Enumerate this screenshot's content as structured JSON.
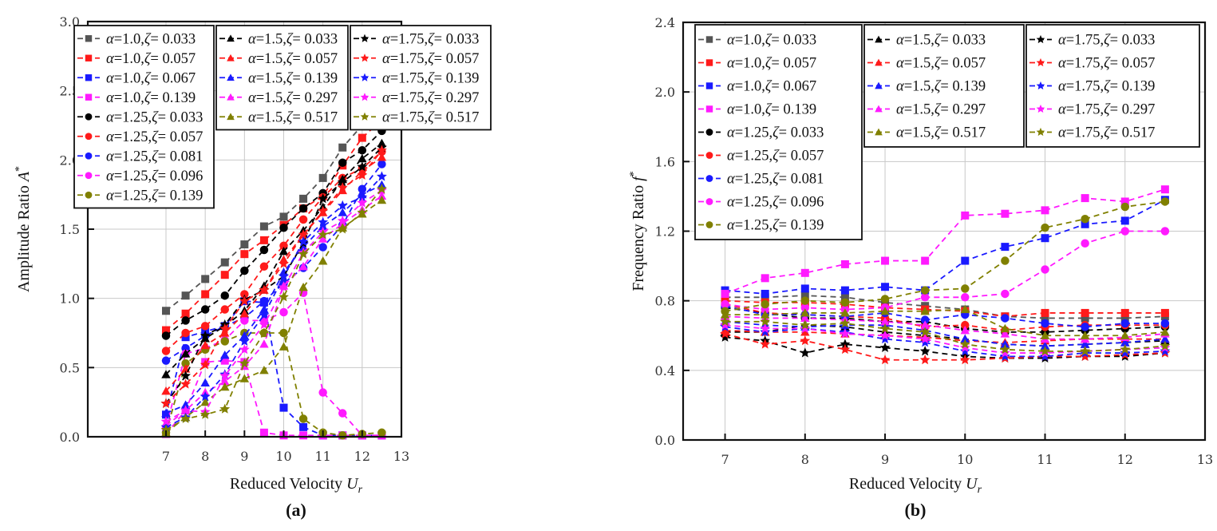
{
  "chart_data": [
    {
      "id": "a",
      "type": "line",
      "panel_label": "(a)",
      "xlabel": "Reduced Velocity U_r",
      "xlabel_main": "Reduced Velocity ",
      "xlabel_var": "U",
      "xlabel_sub": "r",
      "ylabel": "Amplitude Ratio A*",
      "ylabel_main": "Amplitude Ratio ",
      "ylabel_var": "A",
      "ylabel_sup": "*",
      "xlim": [
        6,
        13
      ],
      "ylim": [
        0,
        3.0
      ],
      "xticks": [
        "7",
        "8",
        "9",
        "10",
        "11",
        "12",
        "13"
      ],
      "xtick_values": [
        7,
        8,
        9,
        10,
        11,
        12,
        13
      ],
      "yticks": [
        "0.0",
        "0.5",
        "1.0",
        "1.5",
        "2.0",
        "2.5",
        "3.0"
      ],
      "ytick_values": [
        0,
        0.5,
        1.0,
        1.5,
        2.0,
        2.5,
        3.0
      ],
      "grid": true,
      "legend_placement": "top-left",
      "x": [
        7,
        7.5,
        8,
        8.5,
        9,
        9.5,
        10,
        10.5,
        11,
        11.5,
        12,
        12.5
      ],
      "series": [
        {
          "name": "α=1.0,ζ= 0.033",
          "alpha": "1.0",
          "zeta": "0.033",
          "marker": "square",
          "color": "#555555",
          "values": [
            0.91,
            1.02,
            1.14,
            1.26,
            1.39,
            1.52,
            1.59,
            1.72,
            1.87,
            2.09,
            2.25,
            2.41
          ]
        },
        {
          "name": "α=1.0,ζ= 0.057",
          "alpha": "1.0",
          "zeta": "0.057",
          "marker": "square",
          "color": "#ff1a1a",
          "values": [
            0.77,
            0.89,
            1.03,
            1.17,
            1.32,
            1.42,
            1.53,
            1.65,
            1.74,
            1.96,
            2.16,
            2.29
          ]
        },
        {
          "name": "α=1.0,ζ= 0.067",
          "alpha": "1.0",
          "zeta": "0.067",
          "marker": "square",
          "color": "#1a1aff",
          "values": [
            0.16,
            0.72,
            0.76,
            0.8,
            0.98,
            0.97,
            0.21,
            0.07,
            0.01,
            0.01,
            0.01,
            0.01
          ]
        },
        {
          "name": "α=1.0,ζ= 0.139",
          "alpha": "1.0",
          "zeta": "0.139",
          "marker": "square",
          "color": "#ff1aff",
          "values": [
            0.02,
            0.19,
            0.54,
            0.55,
            0.54,
            0.03,
            0.01,
            0.01,
            0.01,
            0.01,
            0.01,
            0.01
          ]
        },
        {
          "name": "α=1.25,ζ= 0.033",
          "alpha": "1.25",
          "zeta": "0.033",
          "marker": "circle",
          "color": "#000000",
          "values": [
            0.73,
            0.84,
            0.92,
            1.02,
            1.2,
            1.35,
            1.51,
            1.65,
            1.76,
            1.98,
            2.07,
            2.21
          ]
        },
        {
          "name": "α=1.25,ζ= 0.057",
          "alpha": "1.25",
          "zeta": "0.057",
          "marker": "circle",
          "color": "#ff1a1a",
          "values": [
            0.62,
            0.75,
            0.8,
            0.92,
            1.03,
            1.23,
            1.38,
            1.57,
            1.73,
            1.87,
            1.94,
            2.06
          ]
        },
        {
          "name": "α=1.25,ζ= 0.081",
          "alpha": "1.25",
          "zeta": "0.081",
          "marker": "circle",
          "color": "#1a1aff",
          "values": [
            0.55,
            0.64,
            0.73,
            0.8,
            0.86,
            0.98,
            1.11,
            1.22,
            1.37,
            1.53,
            1.79,
            1.97
          ]
        },
        {
          "name": "α=1.25,ζ= 0.096",
          "alpha": "1.25",
          "zeta": "0.096",
          "marker": "circle",
          "color": "#ff1aff",
          "values": [
            0.07,
            0.6,
            0.64,
            0.7,
            0.84,
            0.84,
            0.9,
            1.04,
            0.32,
            0.17,
            0.01,
            0.01
          ]
        },
        {
          "name": "α=1.25,ζ= 0.139",
          "alpha": "1.25",
          "zeta": "0.139",
          "marker": "circle",
          "color": "#808000",
          "values": [
            0.03,
            0.53,
            0.63,
            0.69,
            0.75,
            0.75,
            0.75,
            0.13,
            0.03,
            0.01,
            0.02,
            0.03
          ]
        },
        {
          "name": "α=1.5,ζ= 0.033",
          "alpha": "1.5",
          "zeta": "0.033",
          "marker": "triangle",
          "color": "#000000",
          "values": [
            0.45,
            0.6,
            0.71,
            0.8,
            0.91,
            1.09,
            1.34,
            1.49,
            1.66,
            1.86,
            2.01,
            2.12
          ]
        },
        {
          "name": "α=1.5,ζ= 0.057",
          "alpha": "1.5",
          "zeta": "0.057",
          "marker": "triangle",
          "color": "#ff1a1a",
          "values": [
            0.33,
            0.49,
            0.66,
            0.75,
            0.89,
            1.06,
            1.28,
            1.46,
            1.62,
            1.78,
            1.92,
            2.02
          ]
        },
        {
          "name": "α=1.5,ζ= 0.139",
          "alpha": "1.5",
          "zeta": "0.139",
          "marker": "triangle",
          "color": "#1a1aff",
          "values": [
            0.17,
            0.23,
            0.39,
            0.59,
            0.73,
            0.92,
            1.19,
            1.37,
            1.52,
            1.62,
            1.75,
            1.82
          ]
        },
        {
          "name": "α=1.5,ζ= 0.297",
          "alpha": "1.5",
          "zeta": "0.297",
          "marker": "triangle",
          "color": "#ff1aff",
          "values": [
            0.08,
            0.19,
            0.32,
            0.4,
            0.51,
            0.67,
            1.09,
            1.23,
            1.43,
            1.54,
            1.64,
            1.74
          ]
        },
        {
          "name": "α=1.5,ζ= 0.517",
          "alpha": "1.5",
          "zeta": "0.517",
          "marker": "triangle",
          "color": "#808000",
          "values": [
            0.03,
            0.14,
            0.25,
            0.36,
            0.42,
            0.48,
            0.65,
            1.08,
            1.27,
            1.51,
            1.61,
            1.71
          ]
        },
        {
          "name": "α=1.75,ζ= 0.033",
          "alpha": "1.75",
          "zeta": "0.033",
          "marker": "star",
          "color": "#000000",
          "values": [
            0.24,
            0.44,
            0.73,
            0.81,
            0.99,
            1.06,
            1.16,
            1.4,
            1.72,
            1.84,
            1.95,
            2.09
          ]
        },
        {
          "name": "α=1.75,ζ= 0.057",
          "alpha": "1.75",
          "zeta": "0.057",
          "marker": "star",
          "color": "#ff1a1a",
          "values": [
            0.24,
            0.38,
            0.52,
            0.78,
            0.98,
            1.06,
            1.25,
            1.46,
            1.63,
            1.8,
            1.89,
            2.07
          ]
        },
        {
          "name": "α=1.75,ζ= 0.139",
          "alpha": "1.75",
          "zeta": "0.139",
          "marker": "star",
          "color": "#1a1aff",
          "values": [
            0.07,
            0.14,
            0.29,
            0.45,
            0.69,
            0.88,
            1.16,
            1.41,
            1.55,
            1.67,
            1.73,
            1.88
          ]
        },
        {
          "name": "α=1.75,ζ= 0.297",
          "alpha": "1.75",
          "zeta": "0.297",
          "marker": "star",
          "color": "#ff1aff",
          "values": [
            0.11,
            0.19,
            0.18,
            0.44,
            0.63,
            0.81,
            1.08,
            1.33,
            1.48,
            1.56,
            1.69,
            1.78
          ]
        },
        {
          "name": "α=1.75,ζ= 0.517",
          "alpha": "1.75",
          "zeta": "0.517",
          "marker": "star",
          "color": "#808000",
          "values": [
            0.05,
            0.13,
            0.16,
            0.2,
            0.53,
            0.75,
            1.01,
            1.32,
            1.46,
            1.5,
            1.62,
            1.79
          ]
        }
      ]
    },
    {
      "id": "b",
      "type": "line",
      "panel_label": "(b)",
      "xlabel": "Reduced Velocity U_r",
      "xlabel_main": "Reduced Velocity ",
      "xlabel_var": "U",
      "xlabel_sub": "r",
      "ylabel": "Frequency Ratio f*",
      "ylabel_main": "Frequency Ratio ",
      "ylabel_var": "f",
      "ylabel_sup": "*",
      "xlim": [
        6,
        13
      ],
      "ylim": [
        0,
        2.4
      ],
      "xticks": [
        "7",
        "8",
        "9",
        "10",
        "11",
        "12",
        "13"
      ],
      "xtick_values": [
        7,
        8,
        9,
        10,
        11,
        12,
        13
      ],
      "yticks": [
        "0.0",
        "0.4",
        "0.8",
        "1.2",
        "1.6",
        "2.0",
        "2.4"
      ],
      "ytick_values": [
        0,
        0.4,
        0.8,
        1.2,
        1.6,
        2.0,
        2.4
      ],
      "grid": true,
      "legend_placement": "top-left",
      "x": [
        7,
        7.5,
        8,
        8.5,
        9,
        9.5,
        10,
        10.5,
        11,
        11.5,
        12,
        12.5
      ],
      "series": [
        {
          "name": "α=1.0,ζ= 0.033",
          "alpha": "1.0",
          "zeta": "0.033",
          "marker": "square",
          "color": "#555555",
          "values": [
            0.82,
            0.82,
            0.83,
            0.82,
            0.79,
            0.77,
            0.75,
            0.71,
            0.7,
            0.7,
            0.7,
            0.71
          ]
        },
        {
          "name": "α=1.0,ζ= 0.057",
          "alpha": "1.0",
          "zeta": "0.057",
          "marker": "square",
          "color": "#ff1a1a",
          "values": [
            0.8,
            0.79,
            0.79,
            0.78,
            0.76,
            0.75,
            0.74,
            0.71,
            0.73,
            0.73,
            0.73,
            0.73
          ]
        },
        {
          "name": "α=1.0,ζ= 0.067",
          "alpha": "1.0",
          "zeta": "0.067",
          "marker": "square",
          "color": "#1a1aff",
          "values": [
            0.86,
            0.84,
            0.87,
            0.86,
            0.88,
            0.86,
            1.03,
            1.11,
            1.16,
            1.24,
            1.26,
            1.38
          ]
        },
        {
          "name": "α=1.0,ζ= 0.139",
          "alpha": "1.0",
          "zeta": "0.139",
          "marker": "square",
          "color": "#ff1aff",
          "values": [
            0.84,
            0.93,
            0.96,
            1.01,
            1.03,
            1.03,
            1.29,
            1.3,
            1.32,
            1.39,
            1.37,
            1.44
          ]
        },
        {
          "name": "α=1.25,ζ= 0.033",
          "alpha": "1.25",
          "zeta": "0.033",
          "marker": "circle",
          "color": "#000000",
          "values": [
            0.76,
            0.73,
            0.7,
            0.7,
            0.68,
            0.68,
            0.64,
            0.62,
            0.62,
            0.63,
            0.64,
            0.65
          ]
        },
        {
          "name": "α=1.25,ζ= 0.057",
          "alpha": "1.25",
          "zeta": "0.057",
          "marker": "circle",
          "color": "#ff1a1a",
          "values": [
            0.78,
            0.73,
            0.72,
            0.71,
            0.7,
            0.65,
            0.66,
            0.63,
            0.65,
            0.66,
            0.66,
            0.66
          ]
        },
        {
          "name": "α=1.25,ζ= 0.081",
          "alpha": "1.25",
          "zeta": "0.081",
          "marker": "circle",
          "color": "#1a1aff",
          "values": [
            0.77,
            0.72,
            0.72,
            0.71,
            0.73,
            0.69,
            0.72,
            0.7,
            0.67,
            0.65,
            0.67,
            0.67
          ]
        },
        {
          "name": "α=1.25,ζ= 0.096",
          "alpha": "1.25",
          "zeta": "0.096",
          "marker": "circle",
          "color": "#ff1aff",
          "values": [
            0.78,
            0.75,
            0.76,
            0.75,
            0.76,
            0.82,
            0.82,
            0.84,
            0.98,
            1.13,
            1.2,
            1.2
          ]
        },
        {
          "name": "α=1.25,ζ= 0.139",
          "alpha": "1.25",
          "zeta": "0.139",
          "marker": "circle",
          "color": "#808000",
          "values": [
            0.74,
            0.78,
            0.8,
            0.79,
            0.81,
            0.86,
            0.87,
            1.03,
            1.22,
            1.27,
            1.34,
            1.37
          ]
        },
        {
          "name": "α=1.5,ζ= 0.033",
          "alpha": "1.5",
          "zeta": "0.033",
          "marker": "triangle",
          "color": "#000000",
          "values": [
            0.62,
            0.62,
            0.66,
            0.65,
            0.62,
            0.6,
            0.58,
            0.55,
            0.54,
            0.55,
            0.56,
            0.57
          ]
        },
        {
          "name": "α=1.5,ζ= 0.057",
          "alpha": "1.5",
          "zeta": "0.057",
          "marker": "triangle",
          "color": "#ff1a1a",
          "values": [
            0.63,
            0.62,
            0.62,
            0.61,
            0.6,
            0.59,
            0.57,
            0.56,
            0.57,
            0.58,
            0.58,
            0.58
          ]
        },
        {
          "name": "α=1.5,ζ= 0.139",
          "alpha": "1.5",
          "zeta": "0.139",
          "marker": "triangle",
          "color": "#1a1aff",
          "values": [
            0.68,
            0.66,
            0.65,
            0.66,
            0.66,
            0.63,
            0.58,
            0.55,
            0.54,
            0.55,
            0.56,
            0.58
          ]
        },
        {
          "name": "α=1.5,ζ= 0.297",
          "alpha": "1.5",
          "zeta": "0.297",
          "marker": "triangle",
          "color": "#ff1aff",
          "values": [
            0.71,
            0.7,
            0.7,
            0.69,
            0.68,
            0.66,
            0.63,
            0.61,
            0.58,
            0.58,
            0.59,
            0.61
          ]
        },
        {
          "name": "α=1.5,ζ= 0.517",
          "alpha": "1.5",
          "zeta": "0.517",
          "marker": "triangle",
          "color": "#808000",
          "values": [
            0.72,
            0.72,
            0.73,
            0.73,
            0.74,
            0.74,
            0.75,
            0.64,
            0.6,
            0.6,
            0.6,
            0.62
          ]
        },
        {
          "name": "α=1.75,ζ= 0.033",
          "alpha": "1.75",
          "zeta": "0.033",
          "marker": "star",
          "color": "#000000",
          "values": [
            0.59,
            0.57,
            0.5,
            0.55,
            0.53,
            0.51,
            0.48,
            0.47,
            0.47,
            0.48,
            0.48,
            0.5
          ]
        },
        {
          "name": "α=1.75,ζ= 0.057",
          "alpha": "1.75",
          "zeta": "0.057",
          "marker": "star",
          "color": "#ff1a1a",
          "values": [
            0.61,
            0.55,
            0.57,
            0.52,
            0.46,
            0.46,
            0.46,
            0.47,
            0.48,
            0.48,
            0.49,
            0.5
          ]
        },
        {
          "name": "α=1.75,ζ= 0.139",
          "alpha": "1.75",
          "zeta": "0.139",
          "marker": "star",
          "color": "#1a1aff",
          "values": [
            0.65,
            0.62,
            0.64,
            0.62,
            0.58,
            0.56,
            0.51,
            0.48,
            0.48,
            0.5,
            0.5,
            0.51
          ]
        },
        {
          "name": "α=1.75,ζ= 0.297",
          "alpha": "1.75",
          "zeta": "0.297",
          "marker": "star",
          "color": "#ff1aff",
          "values": [
            0.66,
            0.64,
            0.64,
            0.61,
            0.6,
            0.58,
            0.53,
            0.5,
            0.5,
            0.51,
            0.52,
            0.53
          ]
        },
        {
          "name": "α=1.75,ζ= 0.517",
          "alpha": "1.75",
          "zeta": "0.517",
          "marker": "star",
          "color": "#808000",
          "values": [
            0.68,
            0.68,
            0.66,
            0.67,
            0.64,
            0.62,
            0.55,
            0.52,
            0.51,
            0.51,
            0.52,
            0.54
          ]
        }
      ]
    }
  ]
}
